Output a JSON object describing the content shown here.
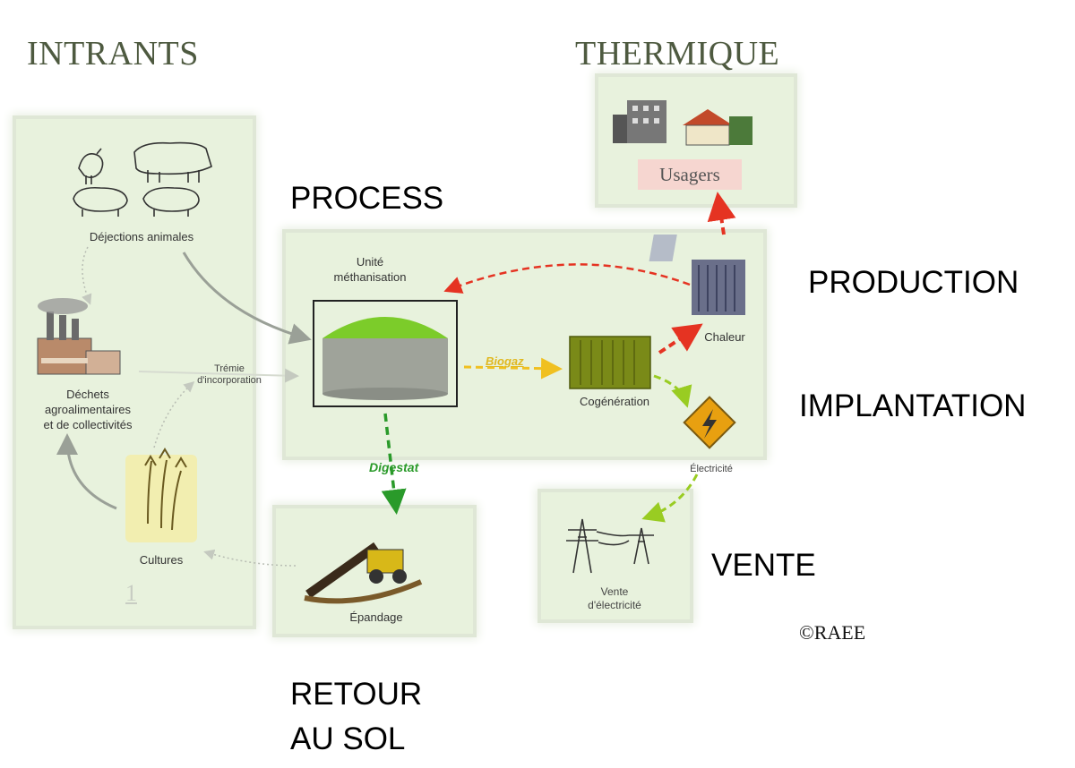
{
  "headings": {
    "intrants": "INTRANTS",
    "thermique": "THERMIQUE",
    "process": "PROCESS",
    "production": "PRODUCTION",
    "implantation": "IMPLANTATION",
    "vente": "VENTE",
    "retour_line1": "RETOUR",
    "retour_line2": "AU SOL"
  },
  "labels": {
    "dejections": "Déjections animales",
    "dechets_line1": "Déchets",
    "dechets_line2": "agroalimentaires",
    "dechets_line3": "et de collectivités",
    "tremie_line1": "Trémie",
    "tremie_line2": "d'incorporation",
    "cultures": "Cultures",
    "panel_number": "1",
    "unite_line1": "Unité",
    "unite_line2": "méthanisation",
    "biogaz": "Biogaz",
    "cogeneration": "Cogénération",
    "chaleur": "Chaleur",
    "electricite": "Électricité",
    "digestat": "Digestat",
    "epandage": "Épandage",
    "vente_line1": "Vente",
    "vente_line2": "d'électricité",
    "usagers": "Usagers",
    "copyright": "©RAEE"
  },
  "colors": {
    "panel_bg": "#e8f2dd",
    "heading_serif": "#4e5a40",
    "heat_arrow": "#e53322",
    "biogaz_arrow": "#f0c020",
    "digestat_arrow": "#2a9a2a",
    "electricity_arrow": "#99cc22",
    "digester_top": "#7ccc2a",
    "container": "#7a8a18"
  }
}
